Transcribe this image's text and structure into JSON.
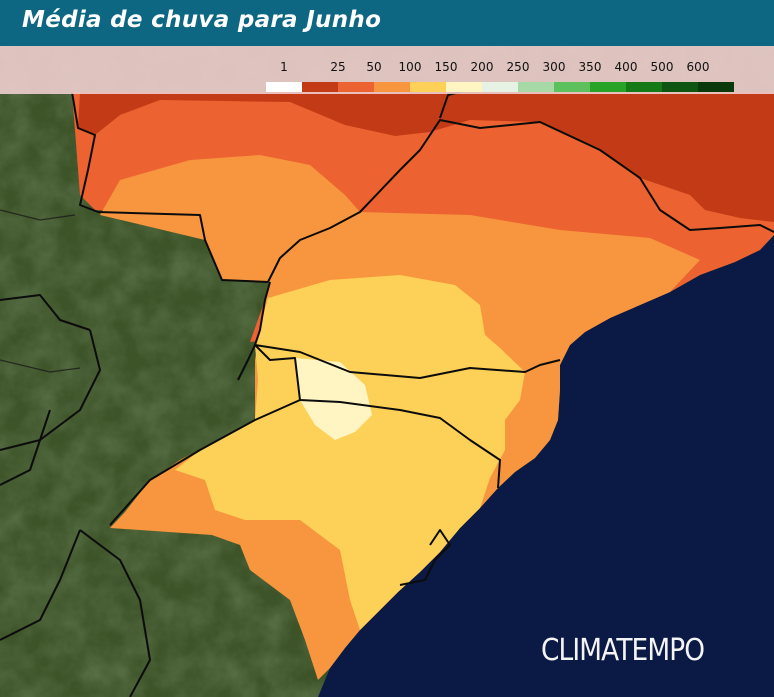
{
  "header": {
    "title": "Média de chuva para Junho"
  },
  "legend": {
    "labels": [
      "1",
      "25",
      "50",
      "100",
      "150",
      "200",
      "250",
      "300",
      "350",
      "400",
      "500",
      "600"
    ],
    "colors": [
      "#ffffff",
      "#c33b16",
      "#ec6230",
      "#f7963e",
      "#fdd057",
      "#fef5c3",
      "#e6f2e3",
      "#a7d9a6",
      "#5cc15c",
      "#27a427",
      "#137a16",
      "#0e5512",
      "#0a3a0b"
    ]
  },
  "brand": {
    "text": "CLIMATEMPO"
  },
  "colors": {
    "ocean": "#0b1a44",
    "land": "#3d5328",
    "title_bar": "#0d6782"
  }
}
